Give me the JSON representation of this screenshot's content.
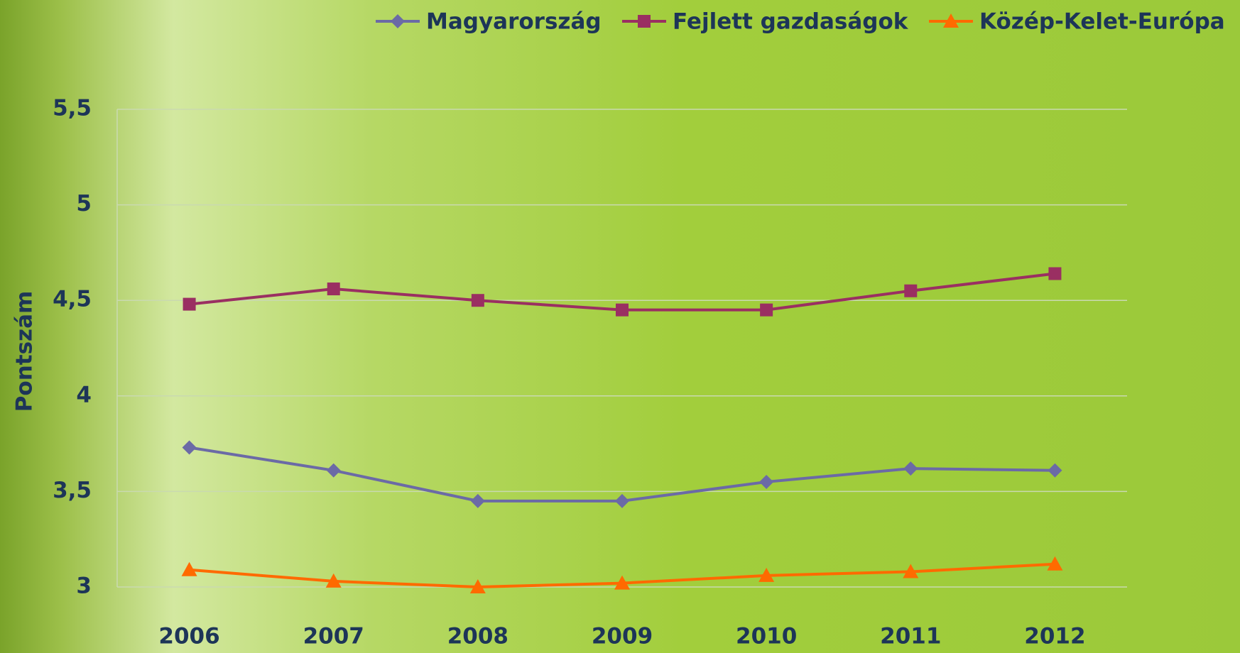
{
  "chart_data": {
    "type": "line",
    "y_label": "Pontszám",
    "categories": [
      "2006",
      "2007",
      "2008",
      "2009",
      "2010",
      "2011",
      "2012"
    ],
    "series": [
      {
        "name": "Magyarország",
        "color": "#6b6aa6",
        "marker": "diamond",
        "values": [
          3.73,
          3.61,
          3.45,
          3.45,
          3.55,
          3.62,
          3.61
        ]
      },
      {
        "name": "Fejlett gazdaságok",
        "color": "#9a2f62",
        "marker": "square",
        "values": [
          4.48,
          4.56,
          4.5,
          4.45,
          4.45,
          4.55,
          4.64
        ]
      },
      {
        "name": "Közép-Kelet-Európa",
        "color": "#ff6a00",
        "marker": "triangle",
        "values": [
          3.09,
          3.03,
          3.0,
          3.02,
          3.06,
          3.08,
          3.12
        ]
      }
    ],
    "ylim": [
      3,
      5.5
    ],
    "yticks": [
      3,
      {
        "value": 3.5,
        "label": "3,5"
      },
      4,
      {
        "value": 4.5,
        "label": "4,5"
      },
      5,
      {
        "value": 5.5,
        "label": "5,5"
      }
    ],
    "grid": true,
    "legend": "top"
  }
}
